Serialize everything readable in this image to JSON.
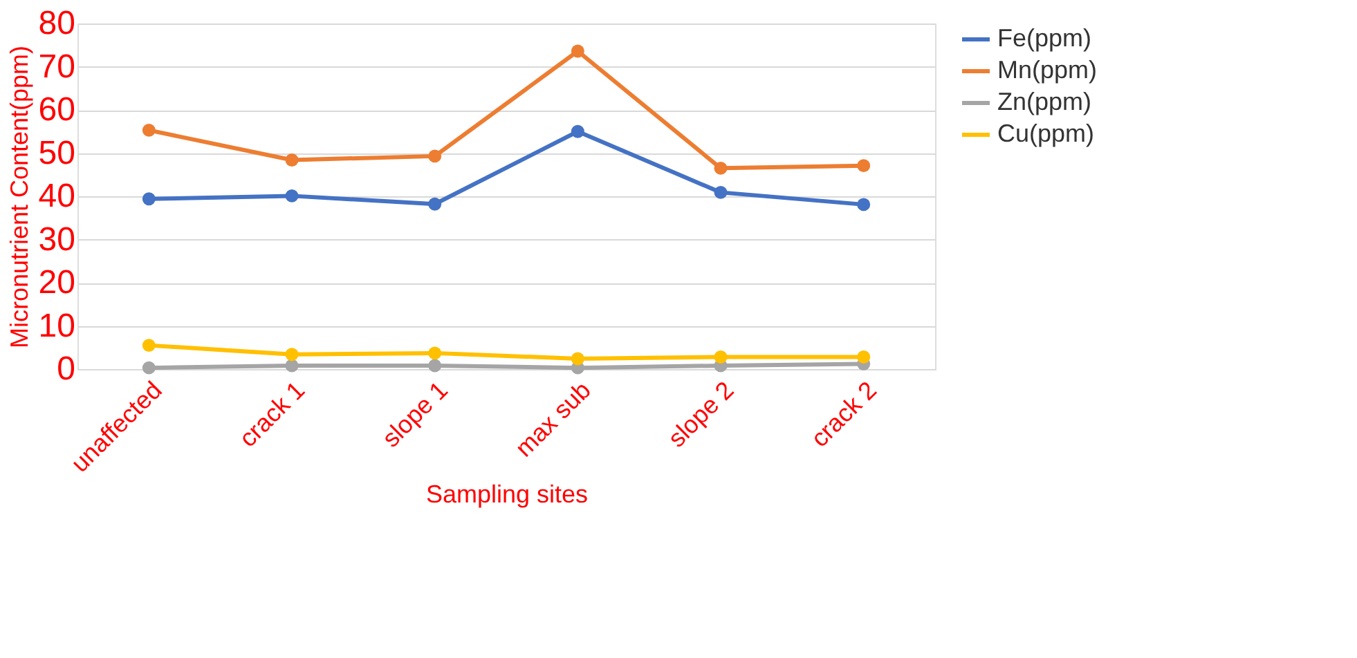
{
  "chart_data": {
    "type": "line",
    "xlabel": "Sampling sites",
    "ylabel": "Micronutrient Content(ppm)",
    "categories": [
      "unaffected",
      "crack 1",
      "slope 1",
      "max sub",
      "slope 2",
      "crack 2"
    ],
    "series": [
      {
        "name": "Fe(ppm)",
        "color": "#4472c4",
        "values": [
          39.4,
          40.1,
          38.2,
          55.0,
          40.9,
          38.1
        ]
      },
      {
        "name": "Mn(ppm)",
        "color": "#ed7d31",
        "values": [
          55.3,
          48.4,
          49.3,
          73.6,
          46.5,
          47.1
        ]
      },
      {
        "name": "Zn(ppm)",
        "color": "#a5a5a5",
        "values": [
          0.3,
          0.8,
          0.8,
          0.3,
          0.8,
          1.2
        ]
      },
      {
        "name": "Cu(ppm)",
        "color": "#ffc000",
        "values": [
          5.5,
          3.4,
          3.7,
          2.4,
          2.8,
          2.8
        ]
      }
    ],
    "ylim": [
      0,
      80
    ],
    "yticks": [
      0,
      10,
      20,
      30,
      40,
      50,
      60,
      70,
      80
    ],
    "grid": "y",
    "legend": "right",
    "marker": "circle",
    "line_style": "solid"
  }
}
